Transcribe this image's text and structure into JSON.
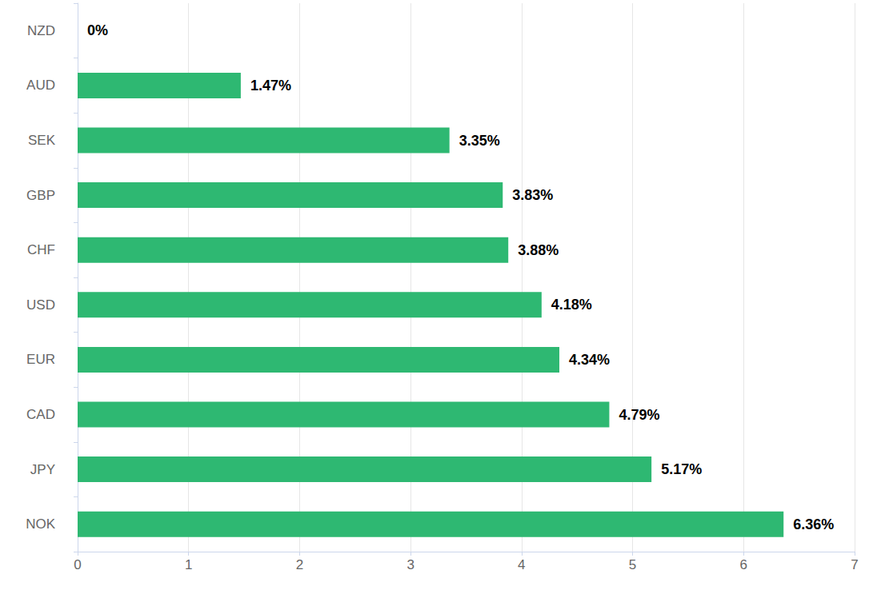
{
  "chart_data": {
    "type": "bar",
    "orientation": "horizontal",
    "categories": [
      "NZD",
      "AUD",
      "SEK",
      "GBP",
      "CHF",
      "USD",
      "EUR",
      "CAD",
      "JPY",
      "NOK"
    ],
    "values": [
      0,
      1.47,
      3.35,
      3.83,
      3.88,
      4.18,
      4.34,
      4.79,
      5.17,
      6.36
    ],
    "value_labels": [
      "0%",
      "1.47%",
      "3.35%",
      "3.83%",
      "3.88%",
      "4.18%",
      "4.34%",
      "4.79%",
      "5.17%",
      "6.36%"
    ],
    "color": "#2eb872",
    "xlim": [
      0,
      7
    ],
    "xticks": [
      0,
      1,
      2,
      3,
      4,
      5,
      6,
      7
    ],
    "grid": true,
    "data_labels": true
  }
}
